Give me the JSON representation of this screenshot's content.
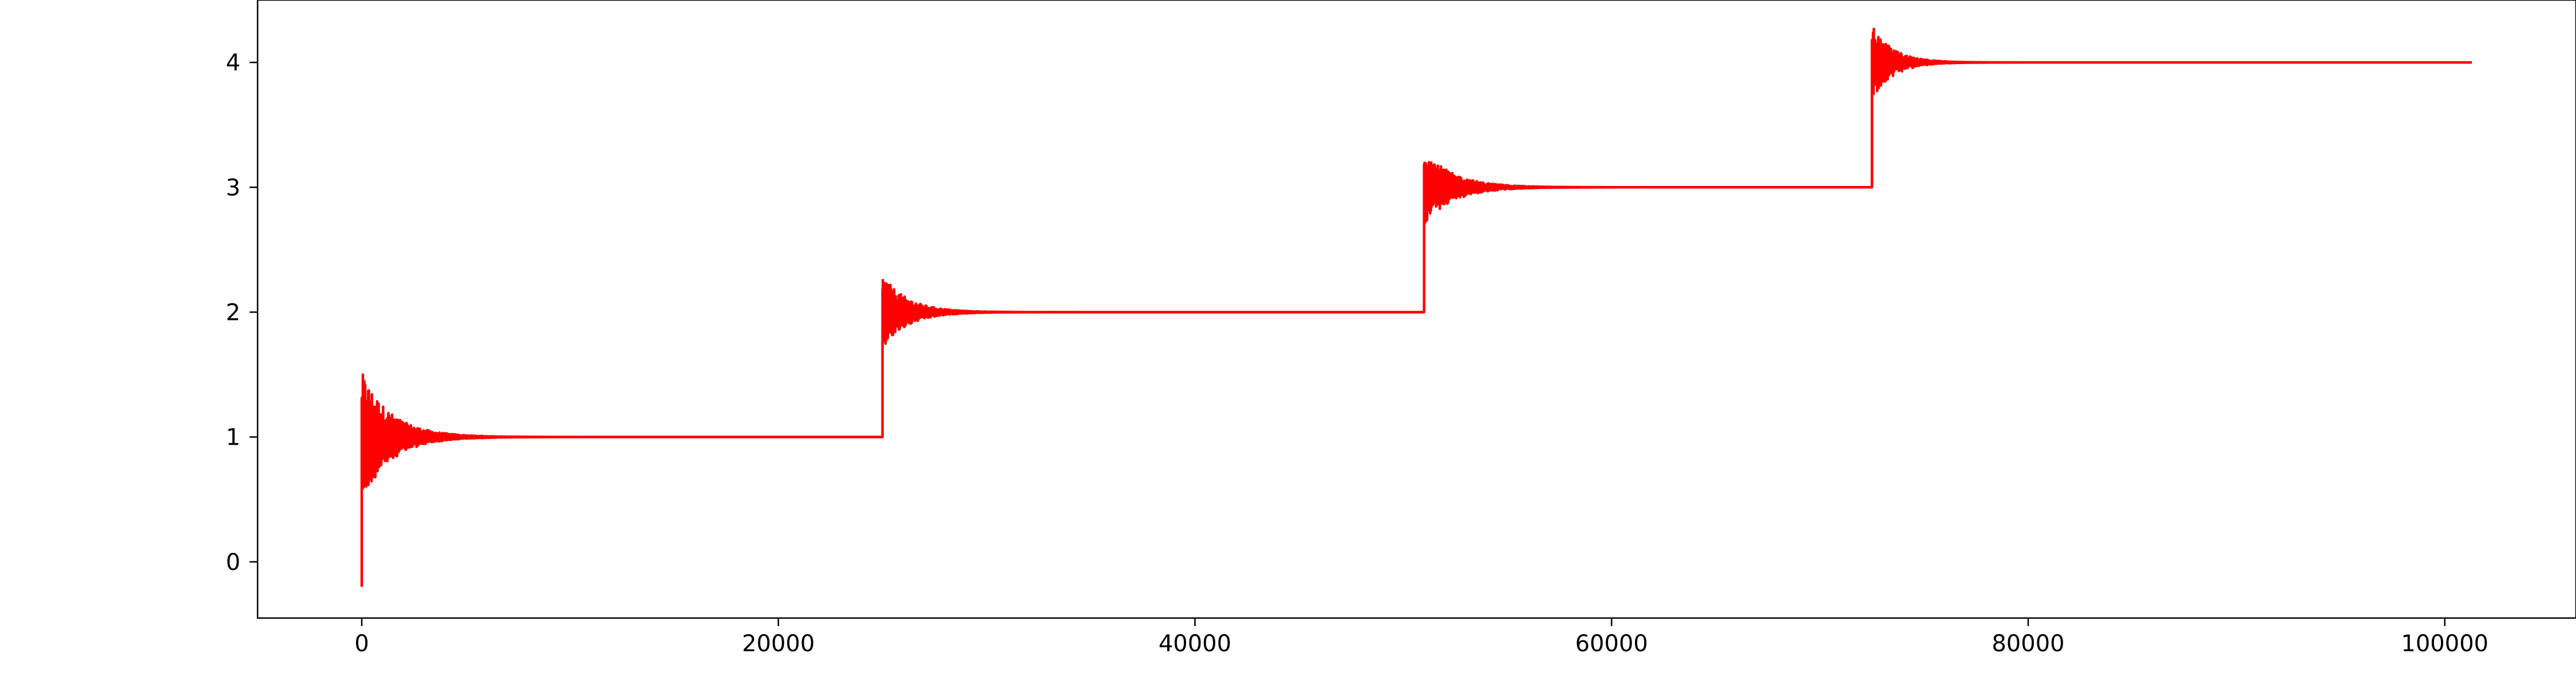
{
  "chart_data": {
    "type": "line",
    "title": "",
    "xlabel": "",
    "ylabel": "",
    "xlim": [
      -5000,
      106300
    ],
    "ylim": [
      -0.45,
      4.5
    ],
    "x_ticks": [
      0,
      20000,
      40000,
      60000,
      80000,
      100000
    ],
    "x_tick_labels": [
      "0",
      "20000",
      "40000",
      "60000",
      "80000",
      "100000"
    ],
    "y_ticks": [
      0,
      1,
      2,
      3,
      4
    ],
    "y_tick_labels": [
      "0",
      "1",
      "2",
      "3",
      "4"
    ],
    "grid": false,
    "legend": "none",
    "series": [
      {
        "color": "#ff0000",
        "steps": [
          {
            "start": 0,
            "end": 25000,
            "from": -0.2,
            "level": 1,
            "peak": 0.52,
            "decay": 1400
          },
          {
            "start": 25000,
            "end": 51000,
            "from": 1.0,
            "level": 2,
            "peak": 0.3,
            "decay": 1200
          },
          {
            "start": 51000,
            "end": 72500,
            "from": 2.0,
            "level": 3,
            "peak": 0.3,
            "decay": 1400
          },
          {
            "start": 72500,
            "end": 101300,
            "from": 3.0,
            "level": 4,
            "peak": 0.3,
            "decay": 1000
          }
        ]
      }
    ]
  }
}
